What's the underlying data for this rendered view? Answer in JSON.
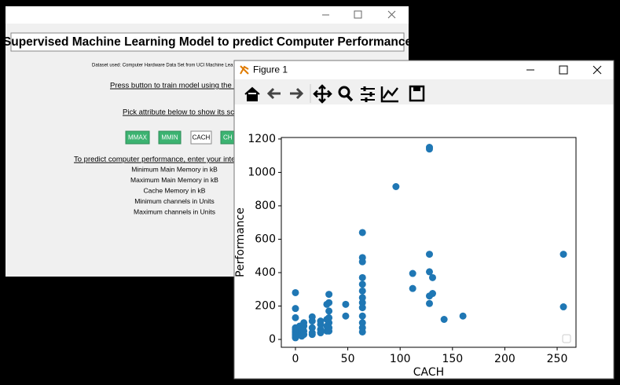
{
  "app_window": {
    "title": "Supervised Machine Learning Model to predict Computer Performance",
    "dataset_note": "Dataset used: Computer Hardware Data Set from UCI Machine Lea",
    "train_prompt": "Press button to train model using the da",
    "attribute_prompt": "Pick attribute below to show its scat",
    "buttons": [
      "MMAX",
      "MMIN",
      "CACH",
      "CH"
    ],
    "predict_prompt": "To predict computer performance, enter your intege",
    "fields": [
      "Minimum Main Memory in kB",
      "Maximum Main Memory in kB",
      "Cache Memory in kB",
      "Minimum channels in Units",
      "Maximum channels in Units"
    ]
  },
  "figure_window": {
    "title": "Figure 1"
  },
  "chart_data": {
    "type": "scatter",
    "x_label": "CACH",
    "y_label": "Performance",
    "color": "#1f77b4",
    "legend": "lower right",
    "x": [
      0,
      0,
      0,
      0,
      0,
      0,
      0,
      0,
      0,
      0,
      4,
      4,
      6,
      6,
      6,
      8,
      8,
      8,
      8,
      16,
      16,
      16,
      16,
      16,
      24,
      24,
      24,
      24,
      30,
      30,
      30,
      30,
      32,
      32,
      32,
      32,
      32,
      32,
      32,
      48,
      48,
      64,
      64,
      64,
      64,
      64,
      64,
      64,
      64,
      64,
      64,
      64,
      64,
      64,
      96,
      112,
      112,
      128,
      128,
      128,
      128,
      128,
      128,
      131,
      131,
      142,
      160,
      256,
      256
    ],
    "values": [
      280,
      185,
      130,
      70,
      60,
      50,
      40,
      30,
      20,
      10,
      80,
      30,
      60,
      40,
      20,
      100,
      80,
      50,
      30,
      135,
      110,
      70,
      40,
      30,
      110,
      90,
      60,
      40,
      210,
      120,
      80,
      50,
      270,
      220,
      170,
      130,
      100,
      70,
      50,
      210,
      140,
      640,
      490,
      465,
      370,
      330,
      290,
      250,
      220,
      190,
      140,
      100,
      70,
      45,
      915,
      395,
      305,
      1150,
      1140,
      510,
      405,
      260,
      215,
      370,
      275,
      120,
      140,
      510,
      195
    ],
    "xlim": [
      -13.5,
      268
    ],
    "ylim": [
      -47,
      1209
    ],
    "xticks": [
      0,
      50,
      100,
      150,
      200,
      250
    ],
    "yticks": [
      0,
      200,
      400,
      600,
      800,
      1000,
      1200
    ]
  }
}
